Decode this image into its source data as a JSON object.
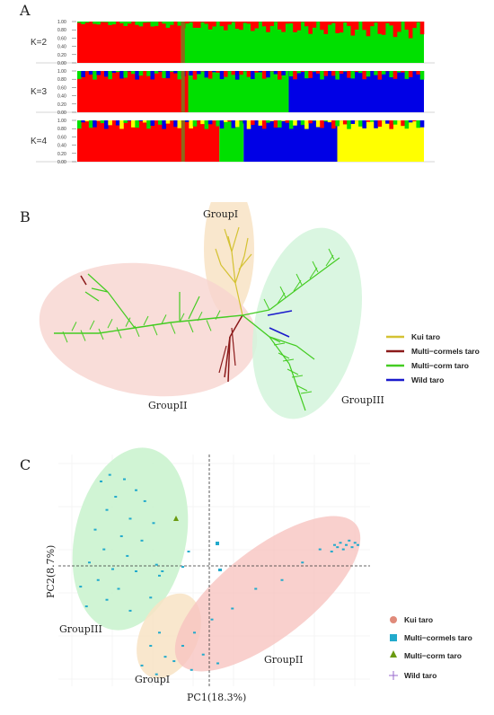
{
  "panels": {
    "a": "A",
    "b": "B",
    "c": "C"
  },
  "colors": {
    "red": "#ff0000",
    "green": "#00e000",
    "blue": "#0000e6",
    "yellow": "#ffff00",
    "olive": "#8a6a1a",
    "kui": "#d4c233",
    "multi_cormels": "#8b1a1a",
    "multi_corm": "#44cc22",
    "wild": "#1a1acc",
    "grp1_fill": "#f8e3c4",
    "grp2_fill": "#f8d4d0",
    "grp3_fill": "#d4f5dc"
  },
  "chart_data": [
    {
      "type": "bar",
      "subtype": "stacked-structure",
      "panel": "A",
      "yticks": [
        "0.00",
        "0.20",
        "0.40",
        "0.60",
        "0.80",
        "1.00"
      ],
      "ylim": [
        0,
        1
      ],
      "rows": [
        {
          "label": "K=2",
          "segments": [
            {
              "color": "red",
              "from": 0.0,
              "to": 0.3
            },
            {
              "color": "green",
              "from": 0.3,
              "to": 1.0
            }
          ]
        },
        {
          "label": "K=3",
          "segments": [
            {
              "color": "red",
              "from": 0.0,
              "to": 0.32
            },
            {
              "color": "green",
              "from": 0.32,
              "to": 0.61
            },
            {
              "color": "blue",
              "from": 0.61,
              "to": 1.0
            }
          ]
        },
        {
          "label": "K=4",
          "segments": [
            {
              "color": "red",
              "from": 0.0,
              "to": 0.41
            },
            {
              "color": "green",
              "from": 0.41,
              "to": 0.48
            },
            {
              "color": "blue",
              "from": 0.48,
              "to": 0.75
            },
            {
              "color": "yellow",
              "from": 0.75,
              "to": 1.0
            }
          ]
        }
      ]
    },
    {
      "type": "tree",
      "panel": "B",
      "groups": [
        "GroupI",
        "GroupII",
        "GroupIII"
      ],
      "legend": [
        "Kui taro",
        "Multi−cormels taro",
        "Multi−corm taro",
        "Wild taro"
      ]
    },
    {
      "type": "scatter",
      "panel": "C",
      "xlabel": "PC1(18.3%)",
      "ylabel": "PC2(8.7%)",
      "groups": [
        "GroupIII",
        "GroupI",
        "GroupII"
      ],
      "legend": [
        "Kui taro",
        "Multi−cormels taro",
        "Multi−corm taro",
        "Wild taro"
      ],
      "points": [
        [
          0.13,
          0.06
        ],
        [
          0.18,
          0.08
        ],
        [
          0.1,
          0.09
        ],
        [
          0.22,
          0.13
        ],
        [
          0.15,
          0.16
        ],
        [
          0.25,
          0.18
        ],
        [
          0.12,
          0.22
        ],
        [
          0.2,
          0.26
        ],
        [
          0.28,
          0.28
        ],
        [
          0.08,
          0.31
        ],
        [
          0.17,
          0.34
        ],
        [
          0.24,
          0.36
        ],
        [
          0.11,
          0.4
        ],
        [
          0.19,
          0.43
        ],
        [
          0.06,
          0.46
        ],
        [
          0.14,
          0.49
        ],
        [
          0.22,
          0.5
        ],
        [
          0.09,
          0.54
        ],
        [
          0.03,
          0.57
        ],
        [
          0.16,
          0.58
        ],
        [
          0.12,
          0.63
        ],
        [
          0.05,
          0.66
        ],
        [
          0.2,
          0.68
        ],
        [
          0.27,
          0.62
        ],
        [
          0.29,
          0.47
        ],
        [
          0.3,
          0.52
        ],
        [
          0.31,
          0.5
        ],
        [
          0.4,
          0.41
        ],
        [
          0.38,
          0.48
        ],
        [
          0.9,
          0.38
        ],
        [
          0.92,
          0.37
        ],
        [
          0.94,
          0.38
        ],
        [
          0.95,
          0.36
        ],
        [
          0.96,
          0.39
        ],
        [
          0.97,
          0.37
        ],
        [
          0.93,
          0.4
        ],
        [
          0.91,
          0.39
        ],
        [
          0.98,
          0.38
        ],
        [
          0.89,
          0.41
        ],
        [
          0.85,
          0.4
        ],
        [
          0.79,
          0.46
        ],
        [
          0.72,
          0.54
        ],
        [
          0.63,
          0.58
        ],
        [
          0.55,
          0.67
        ],
        [
          0.48,
          0.72
        ],
        [
          0.42,
          0.78
        ],
        [
          0.38,
          0.84
        ],
        [
          0.45,
          0.88
        ],
        [
          0.5,
          0.92
        ],
        [
          0.41,
          0.95
        ],
        [
          0.3,
          0.78
        ],
        [
          0.27,
          0.84
        ],
        [
          0.32,
          0.89
        ],
        [
          0.24,
          0.93
        ],
        [
          0.29,
          0.97
        ],
        [
          0.35,
          0.91
        ]
      ]
    }
  ]
}
